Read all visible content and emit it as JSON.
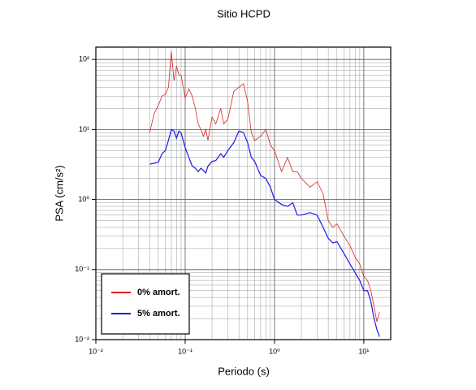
{
  "chart_data": {
    "type": "line",
    "title": "Sitio HCPD",
    "x_label": "Periodo (s)",
    "y_label": "PSA (cm/s²)",
    "log_x": true,
    "log_y": true,
    "grid": true,
    "legend": "lower left",
    "xlim": [
      0.01,
      20
    ],
    "ylim": [
      0.01,
      150
    ],
    "xticks": [
      {
        "value": 0.01,
        "label": "10⁻²"
      },
      {
        "value": 0.1,
        "label": "10⁻¹"
      },
      {
        "value": 1,
        "label": "10⁰"
      },
      {
        "value": 10,
        "label": "10¹"
      }
    ],
    "yticks": [
      {
        "value": 0.01,
        "label": "10⁻²"
      },
      {
        "value": 0.1,
        "label": "10⁻¹"
      },
      {
        "value": 1,
        "label": "10⁰"
      },
      {
        "value": 10,
        "label": "10¹"
      },
      {
        "value": 100,
        "label": "10²"
      }
    ],
    "x": [
      0.04,
      0.045,
      0.05,
      0.055,
      0.06,
      0.065,
      0.07,
      0.075,
      0.08,
      0.085,
      0.09,
      0.1,
      0.11,
      0.12,
      0.13,
      0.14,
      0.15,
      0.16,
      0.17,
      0.18,
      0.2,
      0.22,
      0.25,
      0.27,
      0.3,
      0.35,
      0.4,
      0.45,
      0.5,
      0.55,
      0.6,
      0.7,
      0.8,
      0.9,
      1.0,
      1.2,
      1.4,
      1.6,
      1.8,
      2.0,
      2.5,
      3.0,
      3.5,
      4,
      4.5,
      5,
      6,
      7,
      8,
      9,
      10,
      11,
      12,
      13,
      14,
      15
    ],
    "series": [
      {
        "name": "0% amort.",
        "color": "#e02020",
        "values": [
          9,
          17,
          22,
          30,
          32,
          40,
          130,
          50,
          80,
          60,
          60,
          28,
          38,
          30,
          20,
          12,
          10,
          8,
          10,
          7,
          15,
          12,
          20,
          12,
          14,
          35,
          40,
          45,
          25,
          9,
          7,
          8,
          10,
          6,
          5,
          2.5,
          4,
          2.5,
          2.5,
          2,
          1.5,
          1.8,
          1.2,
          0.5,
          0.4,
          0.45,
          0.3,
          0.22,
          0.15,
          0.12,
          0.08,
          0.07,
          0.05,
          0.03,
          0.018,
          0.025
        ]
      },
      {
        "name": "5% amort.",
        "color": "#1a1aee",
        "values": [
          3.2,
          3.3,
          3.4,
          4.5,
          5,
          7,
          10,
          9.5,
          7.5,
          9.5,
          9,
          5.5,
          4,
          3.0,
          2.8,
          2.5,
          2.8,
          2.6,
          2.4,
          3,
          3.5,
          3.6,
          4.5,
          4.0,
          5,
          6.5,
          9.5,
          9,
          6.5,
          4,
          3.5,
          2.2,
          2.0,
          1.5,
          1.0,
          0.85,
          0.8,
          0.9,
          0.6,
          0.6,
          0.65,
          0.6,
          0.4,
          0.28,
          0.24,
          0.25,
          0.17,
          0.12,
          0.09,
          0.07,
          0.05,
          0.05,
          0.035,
          0.02,
          0.014,
          0.011
        ]
      }
    ]
  }
}
